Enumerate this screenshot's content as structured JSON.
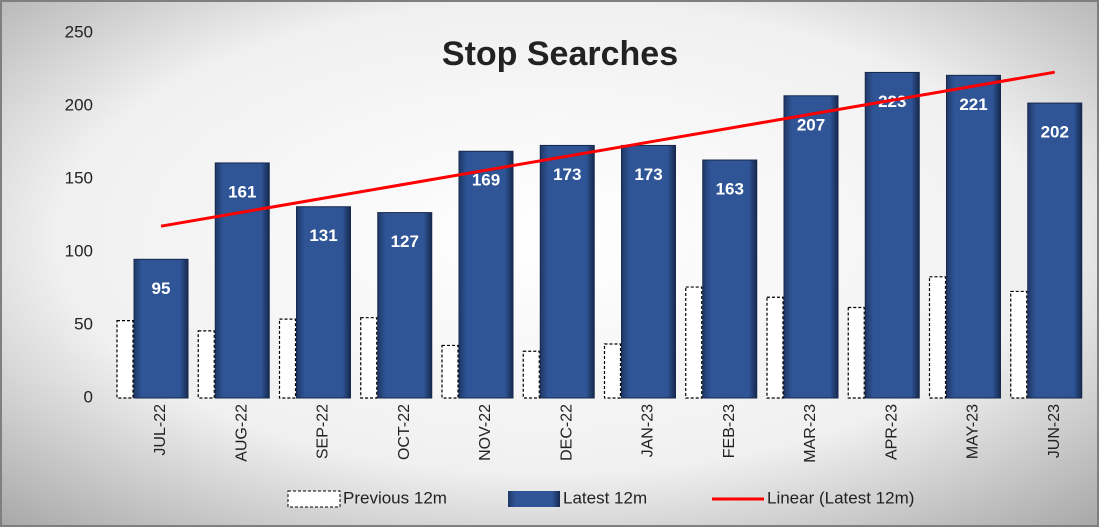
{
  "chart_data": {
    "type": "bar",
    "title": "Stop Searches",
    "categories": [
      "JUL-22",
      "AUG-22",
      "SEP-22",
      "OCT-22",
      "NOV-22",
      "DEC-22",
      "JAN-23",
      "FEB-23",
      "MAR-23",
      "APR-23",
      "MAY-23",
      "JUN-23"
    ],
    "series": [
      {
        "name": "Previous 12m",
        "color": "#ffffff",
        "values": [
          53,
          46,
          54,
          55,
          36,
          32,
          37,
          76,
          69,
          62,
          83,
          73
        ]
      },
      {
        "name": "Latest 12m",
        "color": "#2f5597",
        "values": [
          95,
          161,
          131,
          127,
          169,
          173,
          173,
          163,
          207,
          223,
          221,
          202
        ]
      }
    ],
    "trendline": {
      "name": "Linear (Latest 12m)",
      "color": "#ff0000"
    },
    "ylim": [
      0,
      250
    ],
    "yticks": [
      0,
      50,
      100,
      150,
      200,
      250
    ],
    "legend": "bottom"
  }
}
